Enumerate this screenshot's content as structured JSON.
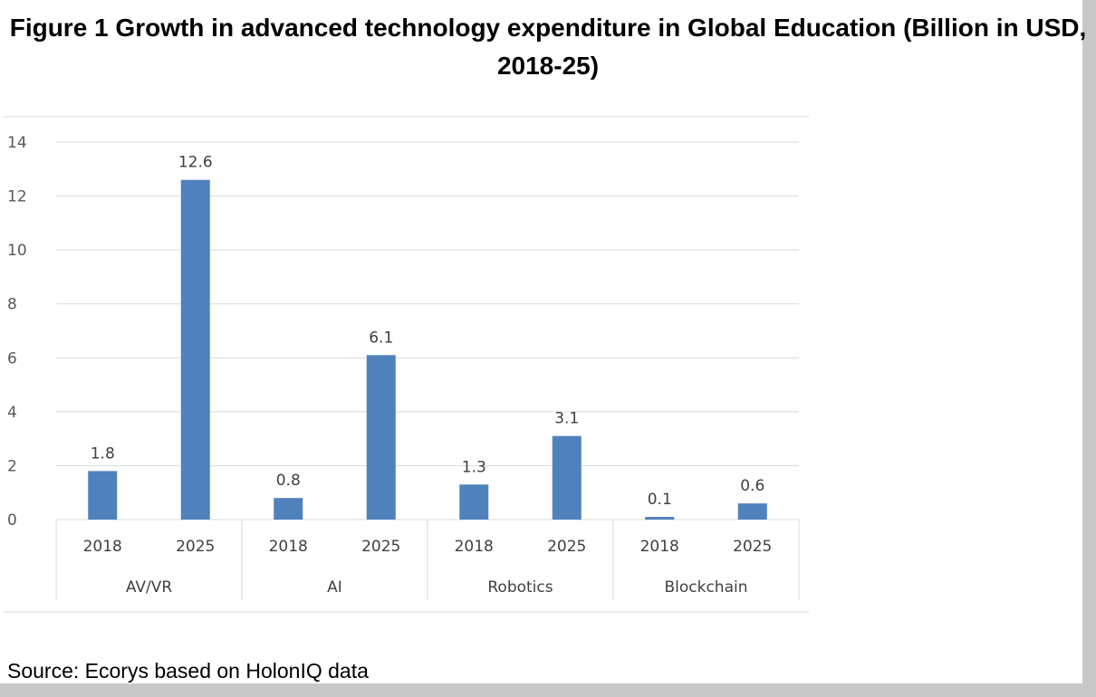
{
  "title": "Figure 1 Growth in advanced technology expenditure in Global Education (Billion in USD, 2018-25)",
  "source": "Source: Ecorys based on HolonIQ data",
  "chart_data": {
    "type": "bar",
    "groups": [
      "AV/VR",
      "AI",
      "Robotics",
      "Blockchain"
    ],
    "categories": [
      "2018",
      "2025",
      "2018",
      "2025",
      "2018",
      "2025",
      "2018",
      "2025"
    ],
    "values": [
      1.8,
      12.6,
      0.8,
      6.1,
      1.3,
      3.1,
      0.1,
      0.6
    ],
    "data_labels": [
      "1.8",
      "12.6",
      "0.8",
      "6.1",
      "1.3",
      "3.1",
      "0.1",
      "0.6"
    ],
    "yticks": [
      "0",
      "2",
      "4",
      "6",
      "8",
      "10",
      "12",
      "14"
    ],
    "ylim": [
      0,
      14
    ],
    "grid": true,
    "bar_color": "#4f81bd",
    "xlabel": "",
    "ylabel": ""
  }
}
